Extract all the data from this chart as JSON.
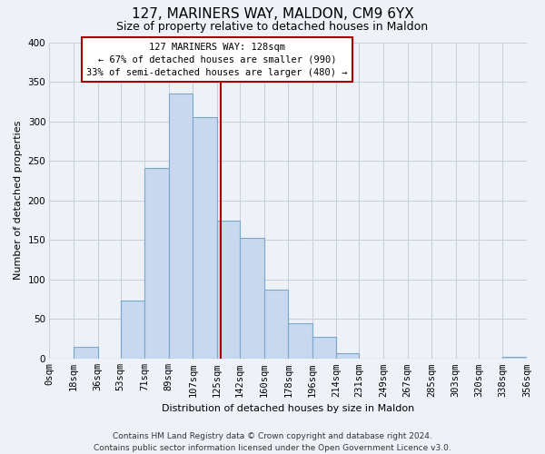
{
  "title": "127, MARINERS WAY, MALDON, CM9 6YX",
  "subtitle": "Size of property relative to detached houses in Maldon",
  "xlabel": "Distribution of detached houses by size in Maldon",
  "ylabel": "Number of detached properties",
  "bar_color": "#c8d8ee",
  "bar_edge_color": "#7aa8cc",
  "bin_edges": [
    0,
    18,
    36,
    53,
    71,
    89,
    107,
    125,
    142,
    160,
    178,
    196,
    214,
    231,
    249,
    267,
    285,
    303,
    320,
    338,
    356
  ],
  "bin_labels": [
    "0sqm",
    "18sqm",
    "36sqm",
    "53sqm",
    "71sqm",
    "89sqm",
    "107sqm",
    "125sqm",
    "142sqm",
    "160sqm",
    "178sqm",
    "196sqm",
    "214sqm",
    "231sqm",
    "249sqm",
    "267sqm",
    "285sqm",
    "303sqm",
    "320sqm",
    "338sqm",
    "356sqm"
  ],
  "bar_heights": [
    0,
    15,
    0,
    73,
    241,
    335,
    305,
    175,
    153,
    87,
    45,
    28,
    7,
    0,
    0,
    0,
    0,
    0,
    0,
    2
  ],
  "vline_x": 128,
  "vline_color": "#aa0000",
  "ylim": [
    0,
    400
  ],
  "yticks": [
    0,
    50,
    100,
    150,
    200,
    250,
    300,
    350,
    400
  ],
  "annotation_title": "127 MARINERS WAY: 128sqm",
  "annotation_line1": "← 67% of detached houses are smaller (990)",
  "annotation_line2": "33% of semi-detached houses are larger (480) →",
  "annotation_box_color": "#ffffff",
  "annotation_box_edge": "#aa0000",
  "footer_line1": "Contains HM Land Registry data © Crown copyright and database right 2024.",
  "footer_line2": "Contains public sector information licensed under the Open Government Licence v3.0.",
  "background_color": "#eef2f8",
  "grid_color": "#c8d0dc",
  "title_fontsize": 11,
  "subtitle_fontsize": 9,
  "ylabel_fontsize": 8,
  "xlabel_fontsize": 8,
  "tick_fontsize": 7.5,
  "footer_fontsize": 6.5
}
